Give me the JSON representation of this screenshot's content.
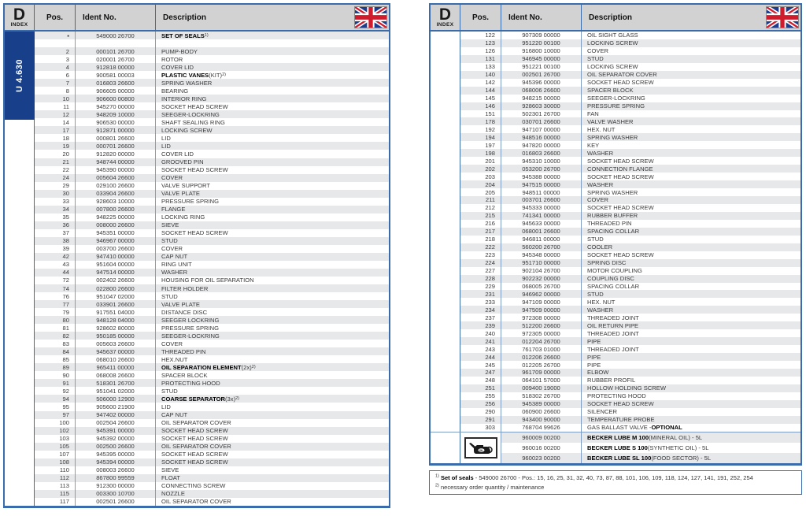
{
  "colors": {
    "border_blue": "#3a6cac",
    "band_navy": "#173f8a",
    "stripe_gray": "#e7e8ea",
    "header_gray": "#d2d2d2",
    "flag_blue": "#1e3c8c",
    "flag_red": "#cf1b2b"
  },
  "left_table": {
    "index_tab": {
      "letter": "D",
      "label": "INDEX"
    },
    "model_tab": "U 4.630",
    "headers": {
      "pos": "Pos.",
      "ident": "Ident No.",
      "desc": "Description"
    },
    "flag_icon": "uk-flag",
    "rows": [
      {
        "pos": "▪",
        "ident": "549000 26700",
        "desc": [
          {
            "t": "SET OF SEALS ",
            "b": true
          },
          {
            "t": "1)",
            "sup": true
          }
        ]
      },
      {
        "pos": "",
        "ident": "",
        "desc": ""
      },
      {
        "pos": "2",
        "ident": "000101 26700",
        "desc": "PUMP-BODY"
      },
      {
        "pos": "3",
        "ident": "020001 26700",
        "desc": "ROTOR"
      },
      {
        "pos": "4",
        "ident": "912818 00000",
        "desc": "COVER LID"
      },
      {
        "pos": "6",
        "ident": "900581 00003",
        "desc": [
          {
            "t": "PLASTIC VANES",
            "b": true
          },
          {
            "t": " (KIT)"
          },
          {
            "t": "2)",
            "sup": true
          }
        ]
      },
      {
        "pos": "7",
        "ident": "016803 26600",
        "desc": "SPRING WASHER"
      },
      {
        "pos": "8",
        "ident": "906605 00000",
        "desc": "BEARING"
      },
      {
        "pos": "10",
        "ident": "906600 00800",
        "desc": "INTERIOR RING"
      },
      {
        "pos": "11",
        "ident": "945270 00000",
        "desc": "SOCKET HEAD SCREW"
      },
      {
        "pos": "12",
        "ident": "948209 10000",
        "desc": "SEEGER-LOCKRING"
      },
      {
        "pos": "14",
        "ident": "906530 00000",
        "desc": "SHAFT SEALING RING"
      },
      {
        "pos": "17",
        "ident": "912871 00000",
        "desc": "LOCKING SCREW"
      },
      {
        "pos": "18",
        "ident": "000801 26600",
        "desc": "LID"
      },
      {
        "pos": "19",
        "ident": "000701 26600",
        "desc": "LID"
      },
      {
        "pos": "20",
        "ident": "912820 00000",
        "desc": "COVER LID"
      },
      {
        "pos": "21",
        "ident": "948744 00000",
        "desc": "GROOVED PIN"
      },
      {
        "pos": "22",
        "ident": "945390 00000",
        "desc": "SOCKET HEAD SCREW"
      },
      {
        "pos": "24",
        "ident": "005604 26600",
        "desc": "COVER"
      },
      {
        "pos": "29",
        "ident": "029100 26600",
        "desc": "VALVE SUPPORT"
      },
      {
        "pos": "30",
        "ident": "033904 26600",
        "desc": "VALVE PLATE"
      },
      {
        "pos": "33",
        "ident": "928603 10000",
        "desc": "PRESSURE SPRING"
      },
      {
        "pos": "34",
        "ident": "007800 26600",
        "desc": "FLANGE"
      },
      {
        "pos": "35",
        "ident": "948225 00000",
        "desc": "LOCKING RING"
      },
      {
        "pos": "36",
        "ident": "008000 26600",
        "desc": "SIEVE"
      },
      {
        "pos": "37",
        "ident": "945351 00000",
        "desc": "SOCKET HEAD SCREW"
      },
      {
        "pos": "38",
        "ident": "946967 00000",
        "desc": "STUD"
      },
      {
        "pos": "39",
        "ident": "003700 26600",
        "desc": "COVER"
      },
      {
        "pos": "42",
        "ident": "947410 00000",
        "desc": "CAP NUT"
      },
      {
        "pos": "43",
        "ident": "951604 00000",
        "desc": "RING UNIT"
      },
      {
        "pos": "44",
        "ident": "947514 00000",
        "desc": "WASHER"
      },
      {
        "pos": "72",
        "ident": "002402 26600",
        "desc": "HOUSING FOR OIL SEPARATION"
      },
      {
        "pos": "74",
        "ident": "022800 26600",
        "desc": "FILTER HOLDER"
      },
      {
        "pos": "76",
        "ident": "951047 02000",
        "desc": "STUD"
      },
      {
        "pos": "77",
        "ident": "033901 26600",
        "desc": "VALVE PLATE"
      },
      {
        "pos": "79",
        "ident": "917551 04000",
        "desc": "DISTANCE DISC"
      },
      {
        "pos": "80",
        "ident": "948128 04000",
        "desc": "SEEGER LOCKRING"
      },
      {
        "pos": "81",
        "ident": "928602 80000",
        "desc": "PRESSURE SPRING"
      },
      {
        "pos": "82",
        "ident": "950185 00000",
        "desc": "SEEGER-LOCKRING"
      },
      {
        "pos": "83",
        "ident": "005603 26600",
        "desc": "COVER"
      },
      {
        "pos": "84",
        "ident": "945637 00000",
        "desc": "THREADED PIN"
      },
      {
        "pos": "85",
        "ident": "068010 26600",
        "desc": "HEX.NUT"
      },
      {
        "pos": "89",
        "ident": "965411 00000",
        "desc": [
          {
            "t": "OIL SEPARATION ELEMENT",
            "b": true
          },
          {
            "t": " (2x)"
          },
          {
            "t": "2)",
            "sup": true
          }
        ]
      },
      {
        "pos": "90",
        "ident": "068008 26600",
        "desc": "SPACER BLOCK"
      },
      {
        "pos": "91",
        "ident": "518301 26700",
        "desc": "PROTECTING HOOD"
      },
      {
        "pos": "92",
        "ident": "951041 02000",
        "desc": "STUD"
      },
      {
        "pos": "94",
        "ident": "506000 12900",
        "desc": [
          {
            "t": "COARSE SEPARATOR",
            "b": true
          },
          {
            "t": " (3x)"
          },
          {
            "t": "2)",
            "sup": true
          }
        ]
      },
      {
        "pos": "95",
        "ident": "905600 21900",
        "desc": "LID"
      },
      {
        "pos": "97",
        "ident": "947402 00000",
        "desc": "CAP NUT"
      },
      {
        "pos": "100",
        "ident": "002504 26600",
        "desc": "OIL SEPARATOR COVER"
      },
      {
        "pos": "102",
        "ident": "945391 00000",
        "desc": "SOCKET HEAD SCREW"
      },
      {
        "pos": "103",
        "ident": "945392 00000",
        "desc": "SOCKET HEAD SCREW"
      },
      {
        "pos": "105",
        "ident": "002500 26600",
        "desc": "OIL SEPARATOR COVER"
      },
      {
        "pos": "107",
        "ident": "945395 00000",
        "desc": "SOCKET HEAD SCREW"
      },
      {
        "pos": "108",
        "ident": "945394 00000",
        "desc": "SOCKET HEAD SCREW"
      },
      {
        "pos": "110",
        "ident": "008003 26600",
        "desc": "SIEVE"
      },
      {
        "pos": "112",
        "ident": "867800 99559",
        "desc": "FLOAT"
      },
      {
        "pos": "113",
        "ident": "912300 00000",
        "desc": "CONNECTING SCREW"
      },
      {
        "pos": "115",
        "ident": "003300 10700",
        "desc": "NOZZLE"
      },
      {
        "pos": "117",
        "ident": "002501 26600",
        "desc": "OIL SEPARATOR COVER"
      }
    ]
  },
  "right_table": {
    "index_tab": {
      "letter": "D",
      "label": "INDEX"
    },
    "headers": {
      "pos": "Pos.",
      "ident": "Ident No.",
      "desc": "Description"
    },
    "flag_icon": "uk-flag",
    "rows": [
      {
        "pos": "122",
        "ident": "907309 00000",
        "desc": "OIL SIGHT GLASS"
      },
      {
        "pos": "123",
        "ident": "951220 00100",
        "desc": "LOCKING SCREW"
      },
      {
        "pos": "126",
        "ident": "916800 10000",
        "desc": "COVER"
      },
      {
        "pos": "131",
        "ident": "946945 00000",
        "desc": "STUD"
      },
      {
        "pos": "133",
        "ident": "951221 00100",
        "desc": "LOCKING SCREW"
      },
      {
        "pos": "140",
        "ident": "002501 26700",
        "desc": "OIL SEPARATOR COVER"
      },
      {
        "pos": "142",
        "ident": "945396 00000",
        "desc": "SOCKET HEAD SCREW"
      },
      {
        "pos": "144",
        "ident": "068006 26600",
        "desc": "SPACER BLOCK"
      },
      {
        "pos": "145",
        "ident": "948215 00000",
        "desc": "SEEGER-LOCKRING"
      },
      {
        "pos": "146",
        "ident": "928603 30000",
        "desc": "PRESSURE SPRING"
      },
      {
        "pos": "151",
        "ident": "502301 26700",
        "desc": "FAN"
      },
      {
        "pos": "178",
        "ident": "030701 26600",
        "desc": "VALVE WASHER"
      },
      {
        "pos": "192",
        "ident": "947107 00000",
        "desc": "HEX. NUT"
      },
      {
        "pos": "194",
        "ident": "948516 00000",
        "desc": "SPRING WASHER"
      },
      {
        "pos": "197",
        "ident": "947820 00000",
        "desc": "KEY"
      },
      {
        "pos": "198",
        "ident": "016803 26600",
        "desc": "WASHER"
      },
      {
        "pos": "201",
        "ident": "945310 10000",
        "desc": "SOCKET HEAD SCREW"
      },
      {
        "pos": "202",
        "ident": "053200 26700",
        "desc": "CONNECTION FLANGE"
      },
      {
        "pos": "203",
        "ident": "945388 00000",
        "desc": "SOCKET HEAD SCREW"
      },
      {
        "pos": "204",
        "ident": "947515 00000",
        "desc": "WASHER"
      },
      {
        "pos": "205",
        "ident": "948511 00000",
        "desc": "SPRING WASHER"
      },
      {
        "pos": "211",
        "ident": "003701 26600",
        "desc": "COVER"
      },
      {
        "pos": "212",
        "ident": "945333 00000",
        "desc": "SOCKET HEAD SCREW"
      },
      {
        "pos": "215",
        "ident": "741341 00000",
        "desc": "RUBBER BUFFER"
      },
      {
        "pos": "216",
        "ident": "945633 00000",
        "desc": "THREADED PIN"
      },
      {
        "pos": "217",
        "ident": "068001 26600",
        "desc": "SPACING COLLAR"
      },
      {
        "pos": "218",
        "ident": "946811 00000",
        "desc": "STUD"
      },
      {
        "pos": "222",
        "ident": "560200 26700",
        "desc": "COOLER"
      },
      {
        "pos": "223",
        "ident": "945348 00000",
        "desc": "SOCKET HEAD SCREW"
      },
      {
        "pos": "224",
        "ident": "951710 00000",
        "desc": "SPRING DISC"
      },
      {
        "pos": "227",
        "ident": "902104 26700",
        "desc": "MOTOR COUPLING"
      },
      {
        "pos": "228",
        "ident": "902232 00000",
        "desc": "COUPLING DISC"
      },
      {
        "pos": "229",
        "ident": "068005 26700",
        "desc": "SPACING COLLAR"
      },
      {
        "pos": "231",
        "ident": "946962 00000",
        "desc": "STUD"
      },
      {
        "pos": "233",
        "ident": "947109 00000",
        "desc": "HEX. NUT"
      },
      {
        "pos": "234",
        "ident": "947509 00000",
        "desc": "WASHER"
      },
      {
        "pos": "237",
        "ident": "972308 00000",
        "desc": "THREADED JOINT"
      },
      {
        "pos": "239",
        "ident": "512200 26600",
        "desc": "OIL RETURN PIPE"
      },
      {
        "pos": "240",
        "ident": "972305 00000",
        "desc": "THREADED JOINT"
      },
      {
        "pos": "241",
        "ident": "012204 26700",
        "desc": "PIPE"
      },
      {
        "pos": "243",
        "ident": "761703 01000",
        "desc": "THREADED JOINT"
      },
      {
        "pos": "244",
        "ident": "012206 26600",
        "desc": "PIPE"
      },
      {
        "pos": "245",
        "ident": "012205 26700",
        "desc": "PIPE"
      },
      {
        "pos": "247",
        "ident": "961709 00000",
        "desc": "ELBOW"
      },
      {
        "pos": "248",
        "ident": "064101 57000",
        "desc": "RUBBER PROFIL"
      },
      {
        "pos": "251",
        "ident": "009400 19000",
        "desc": "HOLLOW HOLDING SCREW"
      },
      {
        "pos": "255",
        "ident": "518302 26700",
        "desc": "PROTECTING HOOD"
      },
      {
        "pos": "256",
        "ident": "945389 00000",
        "desc": "SOCKET HEAD SCREW"
      },
      {
        "pos": "290",
        "ident": "060900 26600",
        "desc": "SILENCER"
      },
      {
        "pos": "291",
        "ident": "943400 90000",
        "desc": "TEMPERATURE PROBE"
      },
      {
        "pos": "303",
        "ident": "768704 99626",
        "desc": [
          {
            "t": "GAS BALLAST VALVE - "
          },
          {
            "t": "OPTIONAL",
            "b": true
          }
        ]
      }
    ],
    "lube": {
      "icon": "oil-can",
      "rows": [
        {
          "ident": "960009 00200",
          "desc": [
            {
              "t": "BECKER LUBE M 100",
              "b": true
            },
            {
              "t": " (MINERAL OIL) - 5L"
            }
          ]
        },
        {
          "ident": "960016 00200",
          "desc": [
            {
              "t": "BECKER LUBE S 100",
              "b": true
            },
            {
              "t": " (SYNTHETIC OIL) - 5L"
            }
          ]
        },
        {
          "ident": "960023 00200",
          "desc": [
            {
              "t": "BECKER LUBE SL 100",
              "b": true
            },
            {
              "t": " (FOOD SECTOR) - 5L"
            }
          ]
        }
      ]
    },
    "footnotes": [
      [
        {
          "t": "1)",
          "sup": true
        },
        {
          "t": " Set of seals",
          "b": true
        },
        {
          "t": " - 549000 26700 - Pos.: 15, 16, 25, 31, 32, 40, 73, 87, 88, 101, 106, 109, 118, 124, 127, 141, 191, 252, 254"
        }
      ],
      [
        {
          "t": "2)",
          "sup": true
        },
        {
          "t": " necessary order quantity / maintenance"
        }
      ]
    ]
  }
}
